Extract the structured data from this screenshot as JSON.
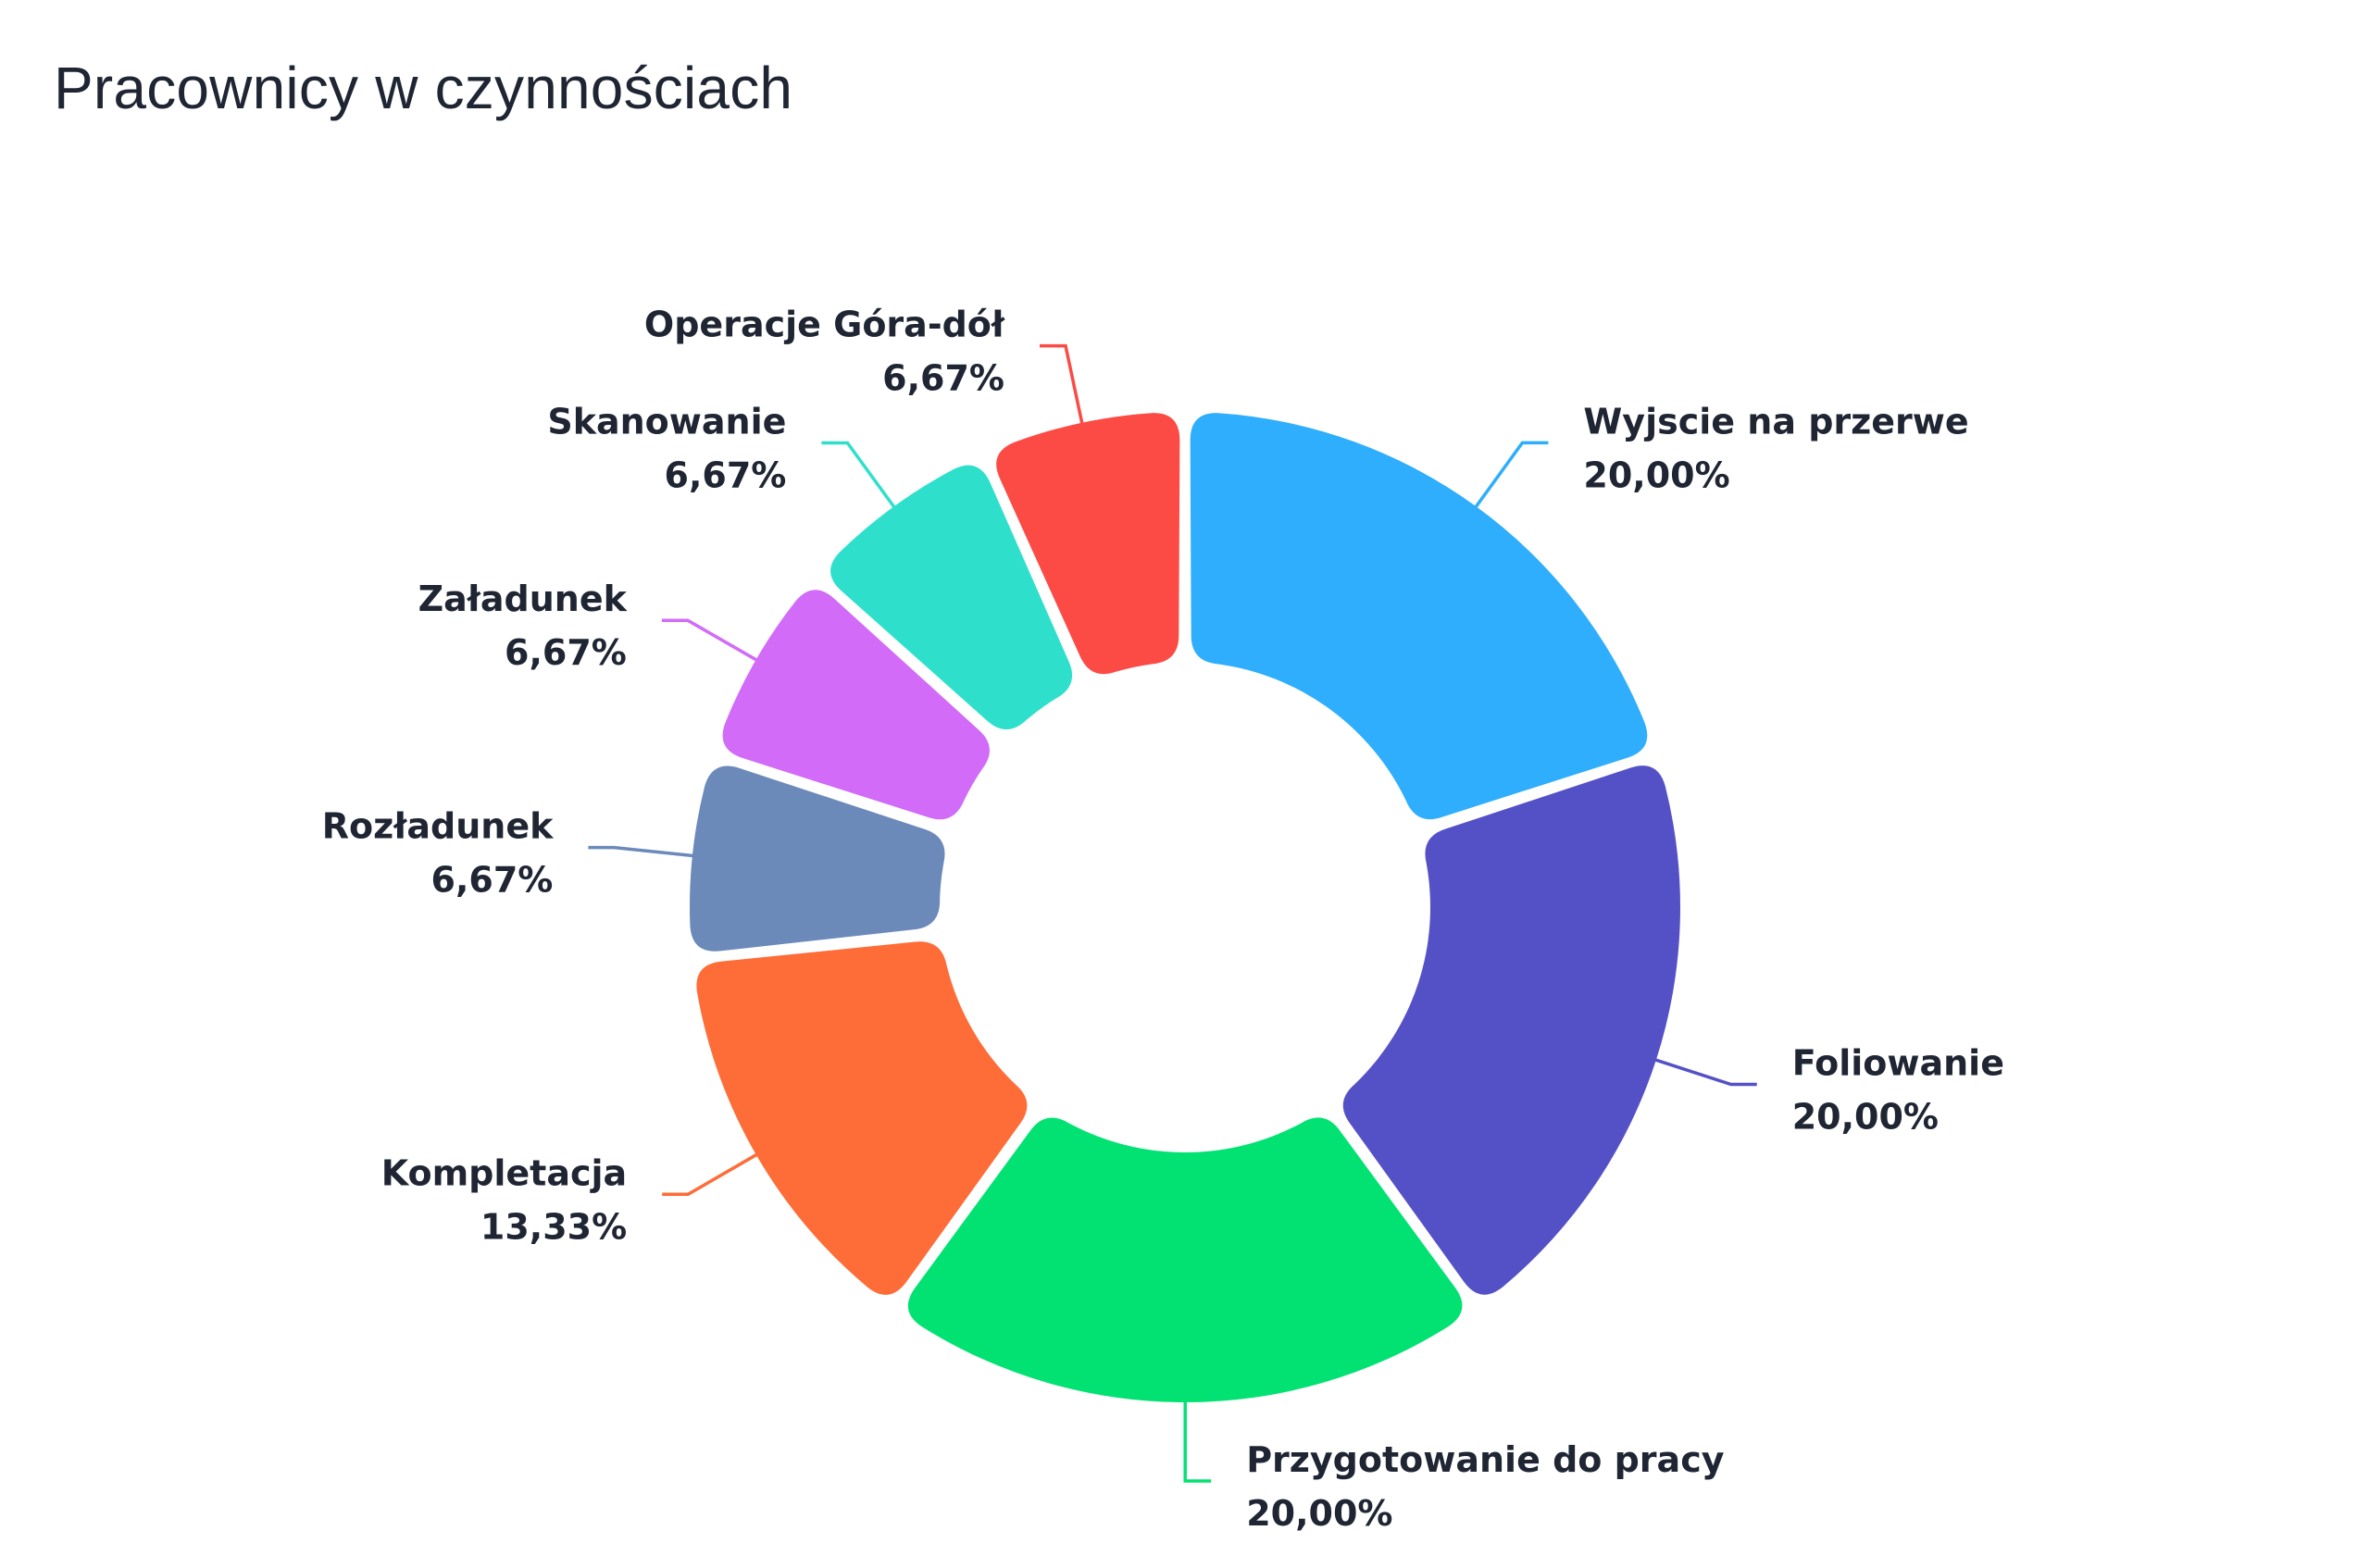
{
  "chart_data": {
    "type": "pie",
    "variant": "donut",
    "title": "Pracownicy w czynnościach",
    "slices": [
      {
        "label": "Wyjscie na przerwe",
        "value": 20.0,
        "display": "20,00%",
        "color": "#2eaefc"
      },
      {
        "label": "Foliowanie",
        "value": 20.0,
        "display": "20,00%",
        "color": "#5451c7"
      },
      {
        "label": "Przygotowanie do pracy",
        "value": 20.0,
        "display": "20,00%",
        "color": "#02e272"
      },
      {
        "label": "Kompletacja",
        "value": 13.33,
        "display": "13,33%",
        "color": "#fe6c37"
      },
      {
        "label": "Rozładunek",
        "value": 6.67,
        "display": "6,67%",
        "color": "#6b8aba"
      },
      {
        "label": "Załadunek",
        "value": 6.67,
        "display": "6,67%",
        "color": "#d16bf8"
      },
      {
        "label": "Skanowanie",
        "value": 6.67,
        "display": "6,67%",
        "color": "#2ee0cb"
      },
      {
        "label": "Operacje Góra-dół",
        "value": 6.67,
        "display": "6,67%",
        "color": "#fc4b44"
      }
    ]
  }
}
